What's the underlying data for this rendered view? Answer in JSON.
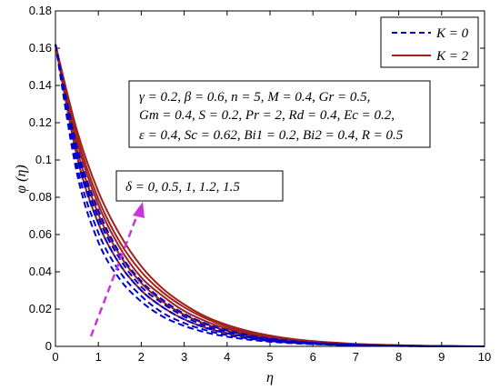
{
  "chart_data": {
    "type": "line",
    "xlabel": "η",
    "ylabel": "φ (η)",
    "xlim": [
      0,
      10
    ],
    "ylim": [
      0,
      0.18
    ],
    "xticks": [
      0,
      1,
      2,
      3,
      4,
      5,
      6,
      7,
      8,
      9,
      10
    ],
    "yticks": [
      0,
      0.02,
      0.04,
      0.06,
      0.08,
      0.1,
      0.12,
      0.14,
      0.16,
      0.18
    ],
    "tick_labels_x": [
      "0",
      "1",
      "2",
      "3",
      "4",
      "5",
      "6",
      "7",
      "8",
      "9",
      "10"
    ],
    "tick_labels_y": [
      "0",
      "0.02",
      "0.04",
      "0.06",
      "0.08",
      "0.1",
      "0.12",
      "0.14",
      "0.16",
      "0.18"
    ],
    "legend": {
      "placement": "top-right",
      "entries": [
        {
          "label": "K = 0",
          "color": "#0000cc",
          "dash": "dashed"
        },
        {
          "label": "K = 2",
          "color": "#a0201a",
          "dash": "solid"
        }
      ]
    },
    "parameter_box": [
      "γ = 0.2, β = 0.6, n = 5, M = 0.4, Gr = 0.5,",
      "Gm = 0.4, S = 0.2, Pr = 2, Rd = 0.4, Ec = 0.2,",
      "ε = 0.4, Sc = 0.62, Bi1 = 0.2, Bi2 = 0.4, R = 0.5"
    ],
    "arrow_label": "δ = 0, 0.5, 1, 1.2, 1.5",
    "arrow_color": "#cc33dd",
    "x": [
      0,
      0.5,
      1,
      1.5,
      2,
      2.5,
      3,
      3.5,
      4,
      4.5,
      5,
      5.5,
      6,
      6.5,
      7,
      7.5,
      8,
      8.5,
      9,
      9.5,
      10
    ],
    "series": [
      {
        "group": "K = 0",
        "delta": 0,
        "values": [
          0.162,
          0.093,
          0.056,
          0.036,
          0.024,
          0.016,
          0.011,
          0.0075,
          0.0052,
          0.0036,
          0.0025,
          0.0017,
          0.0012,
          0.0008,
          0.0005,
          0.0003,
          0.0002,
          0.0001,
          0.0001,
          0,
          0
        ]
      },
      {
        "group": "K = 0",
        "delta": 0.5,
        "values": [
          0.162,
          0.097,
          0.061,
          0.04,
          0.027,
          0.018,
          0.0125,
          0.0087,
          0.006,
          0.0042,
          0.0029,
          0.002,
          0.0014,
          0.0009,
          0.0006,
          0.0004,
          0.0002,
          0.0001,
          0.0001,
          0,
          0
        ]
      },
      {
        "group": "K = 0",
        "delta": 1,
        "values": [
          0.162,
          0.101,
          0.066,
          0.044,
          0.03,
          0.021,
          0.0145,
          0.01,
          0.007,
          0.0049,
          0.0034,
          0.0023,
          0.0016,
          0.0011,
          0.0007,
          0.0005,
          0.0003,
          0.0002,
          0.0001,
          0,
          0
        ]
      },
      {
        "group": "K = 0",
        "delta": 1.2,
        "values": [
          0.162,
          0.104,
          0.069,
          0.047,
          0.032,
          0.023,
          0.016,
          0.011,
          0.0077,
          0.0054,
          0.0037,
          0.0026,
          0.0018,
          0.0012,
          0.0008,
          0.0005,
          0.0003,
          0.0002,
          0.0001,
          0,
          0
        ]
      },
      {
        "group": "K = 0",
        "delta": 1.5,
        "values": [
          0.162,
          0.107,
          0.073,
          0.05,
          0.035,
          0.025,
          0.0175,
          0.0123,
          0.0086,
          0.006,
          0.0042,
          0.0029,
          0.002,
          0.0014,
          0.0009,
          0.0006,
          0.0004,
          0.0002,
          0.0001,
          0,
          0
        ]
      },
      {
        "group": "K = 2",
        "delta": 0,
        "values": [
          0.162,
          0.102,
          0.066,
          0.044,
          0.03,
          0.021,
          0.0145,
          0.01,
          0.007,
          0.0049,
          0.0034,
          0.0024,
          0.0017,
          0.0012,
          0.0008,
          0.0005,
          0.0003,
          0.0002,
          0.0001,
          0,
          0
        ]
      },
      {
        "group": "K = 2",
        "delta": 0.5,
        "values": [
          0.162,
          0.106,
          0.071,
          0.049,
          0.034,
          0.024,
          0.017,
          0.012,
          0.0084,
          0.0059,
          0.0041,
          0.0029,
          0.002,
          0.0014,
          0.0009,
          0.0006,
          0.0004,
          0.0002,
          0.0001,
          0,
          0
        ]
      },
      {
        "group": "K = 2",
        "delta": 1,
        "values": [
          0.162,
          0.11,
          0.076,
          0.053,
          0.037,
          0.027,
          0.019,
          0.0135,
          0.0095,
          0.0067,
          0.0047,
          0.0033,
          0.0023,
          0.0016,
          0.0011,
          0.0007,
          0.0005,
          0.0003,
          0.0001,
          0,
          0
        ]
      },
      {
        "group": "K = 2",
        "delta": 1.2,
        "values": [
          0.162,
          0.113,
          0.079,
          0.056,
          0.04,
          0.029,
          0.021,
          0.015,
          0.0105,
          0.0074,
          0.0052,
          0.0036,
          0.0025,
          0.0018,
          0.0012,
          0.0008,
          0.0005,
          0.0003,
          0.0001,
          0,
          0
        ]
      },
      {
        "group": "K = 2",
        "delta": 1.5,
        "values": [
          0.162,
          0.116,
          0.083,
          0.06,
          0.043,
          0.031,
          0.0225,
          0.016,
          0.0115,
          0.0082,
          0.0058,
          0.004,
          0.0028,
          0.002,
          0.0013,
          0.0009,
          0.0006,
          0.0003,
          0.0002,
          0.0001,
          0
        ]
      }
    ]
  }
}
